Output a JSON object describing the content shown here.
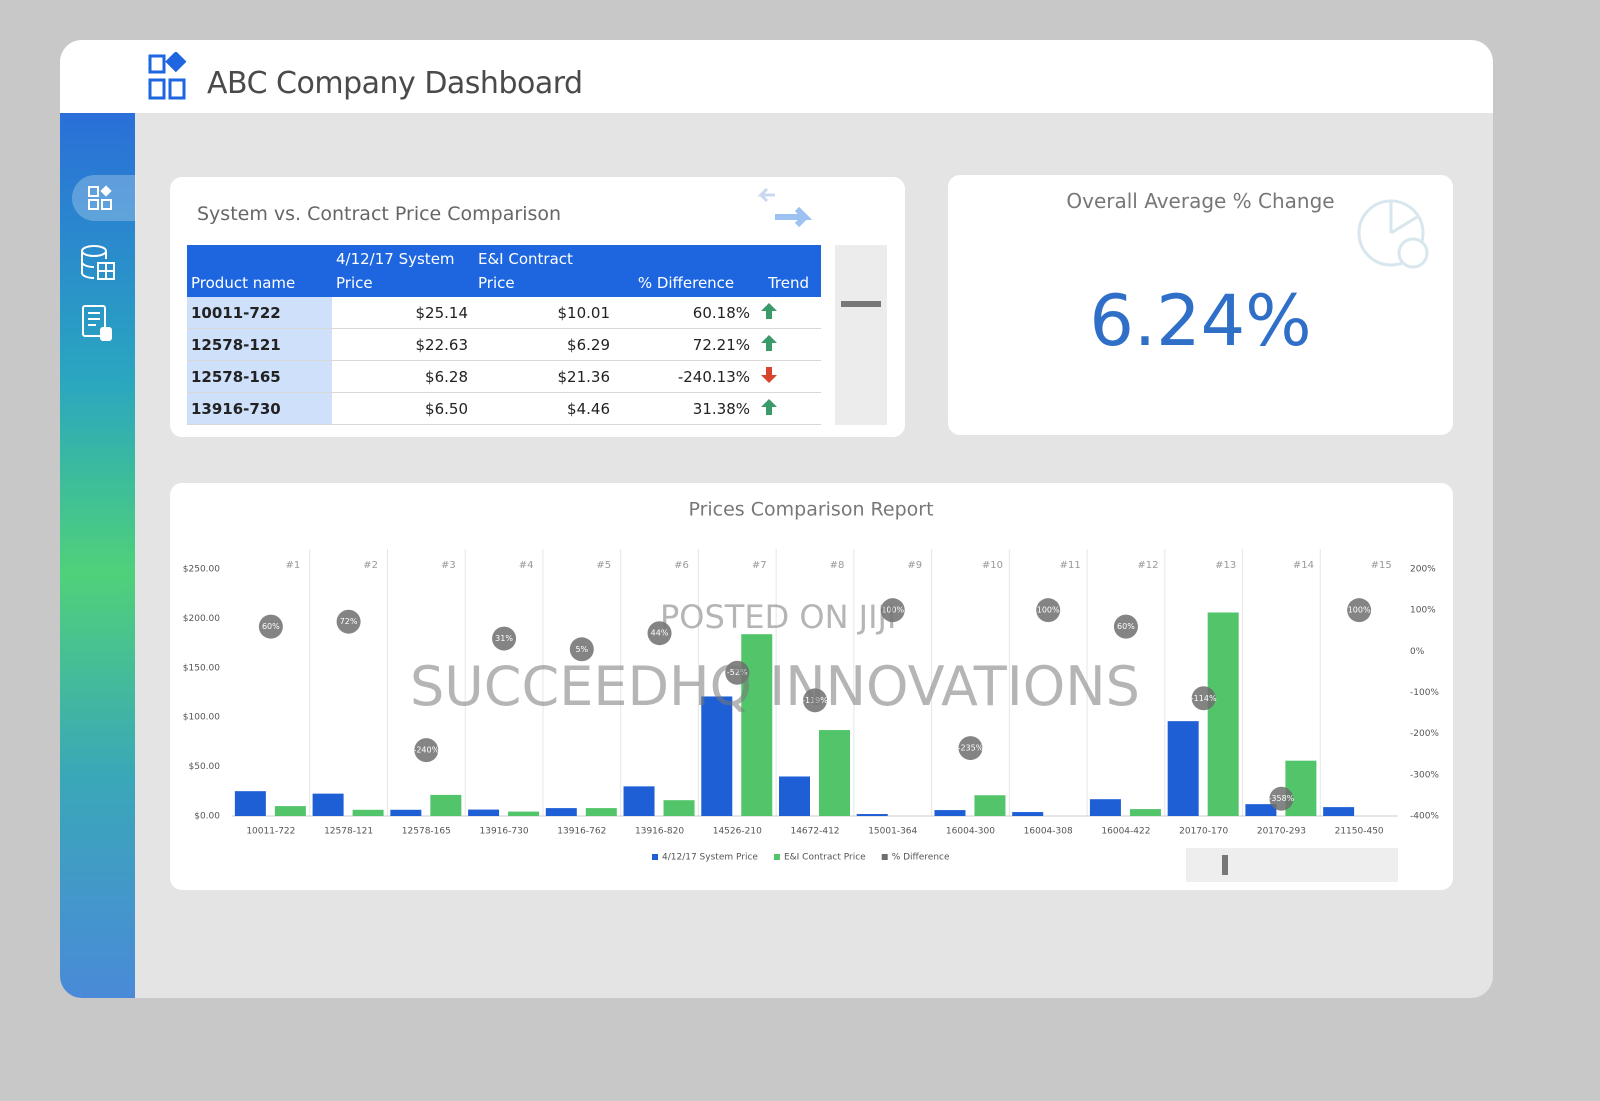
{
  "header": {
    "title": "ABC Company Dashboard"
  },
  "table": {
    "title": "System vs. Contract Price Comparison",
    "columns": [
      "Product name",
      "4/12/17 System Price",
      "E&I Contract Price",
      "% Difference",
      "Trend"
    ],
    "rows": [
      [
        "10011-722",
        "$25.14",
        "$10.01",
        "60.18%"
      ],
      [
        "12578-121",
        "$22.63",
        "$6.29",
        "72.21%"
      ],
      [
        "12578-165",
        "$6.28",
        "$21.36",
        "-240.13%"
      ],
      [
        "13916-730",
        "$6.50",
        "$4.46",
        "31.38%"
      ]
    ]
  },
  "kpi": {
    "title": "Overall Average % Change",
    "value": "6.24%"
  },
  "watermarks": [
    "POSTED ON JIJI",
    "SUCCEEDHQ INNOVATIONS"
  ],
  "chart_data": {
    "type": "bar",
    "title": "Prices Comparison Report",
    "categories": [
      "10011-722",
      "12578-121",
      "12578-165",
      "13916-730",
      "13916-762",
      "13916-820",
      "14526-210",
      "14672-412",
      "15001-364",
      "16004-300",
      "16004-308",
      "16004-422",
      "20170-170",
      "20170-293",
      "21150-450"
    ],
    "category_numbers": [
      "#1",
      "#2",
      "#3",
      "#4",
      "#5",
      "#6",
      "#7",
      "#8",
      "#9",
      "#10",
      "#11",
      "#12",
      "#13",
      "#14",
      "#15"
    ],
    "series": [
      {
        "name": "4/12/17 System Price",
        "color": "#1f5fd6",
        "values": [
          25.14,
          22.63,
          6.28,
          6.5,
          8,
          30,
          121,
          40,
          2,
          6,
          4,
          17,
          96,
          12,
          9
        ]
      },
      {
        "name": "E&I Contract Price",
        "color": "#52c46a",
        "values": [
          10.01,
          6.29,
          21.36,
          4.46,
          8,
          16,
          184,
          87,
          0,
          21,
          0,
          7,
          206,
          56,
          0
        ]
      },
      {
        "name": "% Difference",
        "color": "#6e6e6e",
        "axis": "y2",
        "values": [
          60,
          72,
          -240,
          31,
          5,
          44,
          -52,
          -119,
          100,
          -235,
          100,
          60,
          -114,
          -358,
          100
        ],
        "value_labels": [
          "60%",
          "72%",
          "-240%",
          "31%",
          "5%",
          "44%",
          "-52%",
          "-119%",
          "100%",
          "-235%",
          "100%",
          "60%",
          "-114%",
          "-358%",
          "100%"
        ]
      }
    ],
    "ylim": [
      0,
      250
    ],
    "yticks": [
      {
        "value": 0,
        "label": "$0.00"
      },
      {
        "value": 50,
        "label": "$50.00"
      },
      {
        "value": 100,
        "label": "$100.00"
      },
      {
        "value": 150,
        "label": "$150.00"
      },
      {
        "value": 200,
        "label": "$200.00"
      },
      {
        "value": 250,
        "label": "$250.00"
      }
    ],
    "y2lim": [
      -400,
      200
    ],
    "y2ticks": [
      {
        "value": 200,
        "label": "200%"
      },
      {
        "value": 100,
        "label": "100%"
      },
      {
        "value": 0,
        "label": "0%"
      },
      {
        "value": -100,
        "label": "-100%"
      },
      {
        "value": -200,
        "label": "-200%"
      },
      {
        "value": -300,
        "label": "-300%"
      },
      {
        "value": -400,
        "label": "-400%"
      }
    ],
    "grid": true,
    "legend": "bottom"
  }
}
